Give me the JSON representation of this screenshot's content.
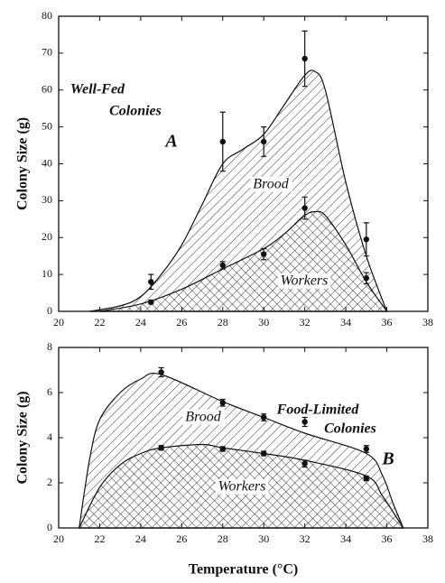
{
  "chart_data": [
    {
      "type": "area",
      "ylabel": "Colony Size (g)",
      "xlim": [
        20,
        38
      ],
      "xticks": [
        20,
        22,
        24,
        26,
        28,
        30,
        32,
        34,
        36,
        38
      ],
      "ylim": [
        0,
        80
      ],
      "yticks": [
        0,
        10,
        20,
        30,
        40,
        50,
        60,
        70,
        80
      ],
      "annotations": [
        "Well-Fed",
        "Colonies",
        "A"
      ],
      "series": [
        {
          "name": "Brood",
          "pattern": "diagonal",
          "x": [
            21.5,
            23,
            24,
            25,
            26,
            27,
            28,
            29,
            30,
            31,
            32,
            32.5,
            33,
            34,
            35,
            36
          ],
          "values": [
            0,
            1.5,
            4,
            10,
            18,
            29,
            40,
            44,
            48,
            56,
            64,
            65,
            60,
            35,
            15,
            0
          ]
        },
        {
          "name": "Workers",
          "pattern": "crosshatch",
          "x": [
            22,
            24,
            26,
            28,
            30,
            31,
            32,
            32.5,
            33,
            34,
            35,
            36
          ],
          "values": [
            0,
            2,
            6,
            11.5,
            17,
            21,
            26,
            27,
            26,
            18,
            8,
            0
          ]
        }
      ],
      "points": [
        {
          "x": [
            24.5,
            28,
            30,
            32,
            35
          ],
          "values": [
            8,
            46,
            46,
            68.5,
            19.5
          ],
          "errors": [
            2,
            8,
            4,
            7.5,
            4.5
          ]
        },
        {
          "x": [
            24.5,
            28,
            30,
            32,
            35
          ],
          "values": [
            2.5,
            12.5,
            15.5,
            28,
            9
          ],
          "errors": [
            0.5,
            1,
            1.5,
            3,
            1.5
          ]
        }
      ]
    },
    {
      "type": "area",
      "ylabel": "Colony Size (g)",
      "xlabel": "Temperature (°C)",
      "xlim": [
        20,
        38
      ],
      "xticks": [
        20,
        22,
        24,
        26,
        28,
        30,
        32,
        34,
        36,
        38
      ],
      "ylim": [
        0,
        8
      ],
      "yticks": [
        0,
        2,
        4,
        6,
        8
      ],
      "annotations": [
        "Food-Limited",
        "Colonies",
        "B"
      ],
      "series": [
        {
          "name": "Brood",
          "pattern": "diagonal",
          "x": [
            21,
            21.5,
            22,
            23,
            24,
            25,
            28,
            30,
            32,
            35,
            35.8,
            36.3,
            36.8
          ],
          "values": [
            0,
            3,
            4.8,
            6,
            6.6,
            6.8,
            5.6,
            4.9,
            4.2,
            3.3,
            2.3,
            1.1,
            0
          ]
        },
        {
          "name": "Workers",
          "pattern": "crosshatch",
          "x": [
            21,
            22,
            23,
            24,
            25,
            27,
            28,
            30,
            32,
            35,
            35.8,
            36.8
          ],
          "values": [
            0,
            1.8,
            2.8,
            3.3,
            3.55,
            3.7,
            3.55,
            3.3,
            3,
            2.3,
            1.4,
            0
          ]
        }
      ],
      "points": [
        {
          "x": [
            25,
            28,
            30,
            32,
            35
          ],
          "values": [
            6.9,
            5.55,
            4.9,
            4.7,
            3.5
          ],
          "errors": [
            0.2,
            0.15,
            0.15,
            0.2,
            0.15
          ]
        },
        {
          "x": [
            25,
            28,
            30,
            32,
            35
          ],
          "values": [
            3.55,
            3.5,
            3.3,
            2.85,
            2.2
          ],
          "errors": [
            0.1,
            0.1,
            0.1,
            0.15,
            0.1
          ]
        }
      ]
    }
  ]
}
